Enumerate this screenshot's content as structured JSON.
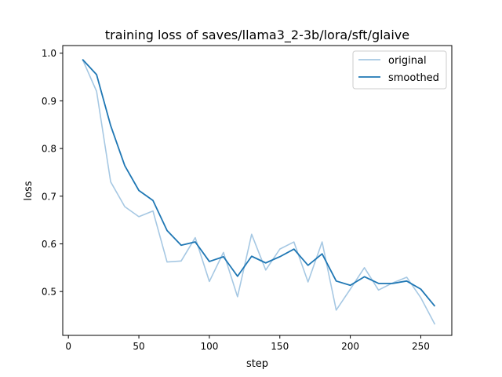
{
  "chart_data": {
    "type": "line",
    "title": "training loss of saves/llama3_2-3b/lora/sft/glaive",
    "xlabel": "step",
    "ylabel": "loss",
    "xlim": [
      -4,
      272
    ],
    "ylim": [
      0.408,
      1.016
    ],
    "xticks": [
      0,
      50,
      100,
      150,
      200,
      250
    ],
    "yticks": [
      0.5,
      0.6,
      0.7,
      0.8,
      0.9,
      1.0
    ],
    "ytick_labels": [
      "0.5",
      "0.6",
      "0.7",
      "0.8",
      "0.9",
      "1.0"
    ],
    "grid": false,
    "legend_position": "top-right",
    "x": [
      10,
      20,
      30,
      40,
      50,
      60,
      70,
      80,
      90,
      100,
      110,
      120,
      130,
      140,
      150,
      160,
      170,
      180,
      190,
      200,
      210,
      220,
      230,
      240,
      250,
      260
    ],
    "series": [
      {
        "name": "original",
        "color": "#a6c8e3",
        "values": [
          0.987,
          0.92,
          0.73,
          0.678,
          0.657,
          0.669,
          0.562,
          0.564,
          0.613,
          0.521,
          0.582,
          0.489,
          0.62,
          0.545,
          0.589,
          0.604,
          0.52,
          0.604,
          0.461,
          0.505,
          0.55,
          0.503,
          0.518,
          0.53,
          0.487,
          0.431
        ]
      },
      {
        "name": "smoothed",
        "color": "#1f77b4",
        "values": [
          0.987,
          0.955,
          0.848,
          0.764,
          0.712,
          0.691,
          0.628,
          0.597,
          0.604,
          0.563,
          0.573,
          0.532,
          0.574,
          0.56,
          0.573,
          0.589,
          0.555,
          0.579,
          0.522,
          0.513,
          0.531,
          0.517,
          0.517,
          0.522,
          0.505,
          0.469
        ]
      }
    ]
  }
}
